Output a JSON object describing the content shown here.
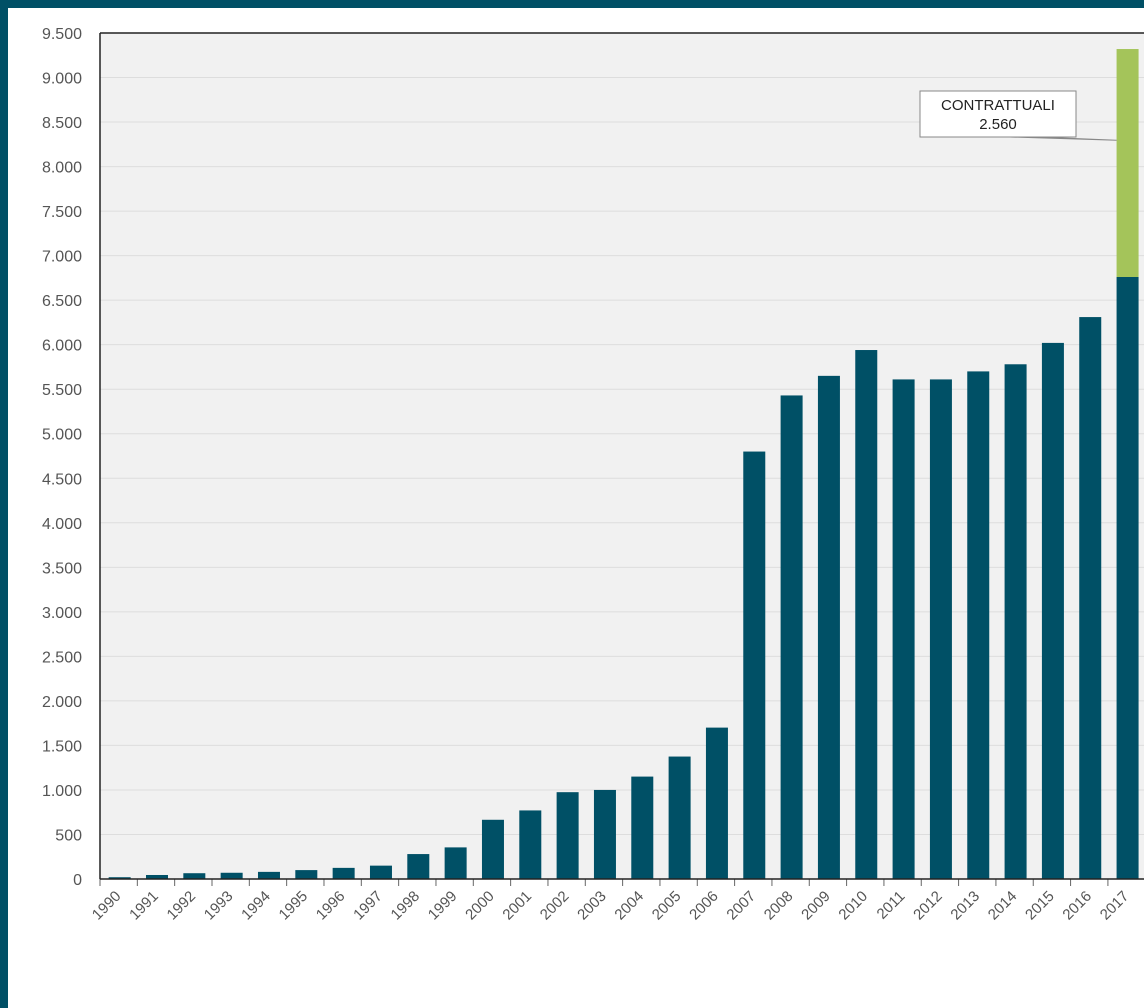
{
  "chart_data": {
    "type": "bar",
    "stacked": true,
    "title": "",
    "xlabel": "",
    "ylabel": "",
    "ylim": [
      0,
      9500
    ],
    "ytick_step": 500,
    "grid": true,
    "categories": [
      "1990",
      "1991",
      "1992",
      "1993",
      "1994",
      "1995",
      "1996",
      "1997",
      "1998",
      "1999",
      "2000",
      "2001",
      "2002",
      "2003",
      "2004",
      "2005",
      "2006",
      "2007",
      "2008",
      "2009",
      "2010",
      "2011",
      "2012",
      "2013",
      "2014",
      "2015",
      "2016",
      "2017"
    ],
    "series": [
      {
        "color": "#005066",
        "values": [
          20,
          45,
          65,
          70,
          80,
          100,
          125,
          150,
          280,
          355,
          665,
          770,
          975,
          1000,
          1150,
          1375,
          1700,
          4800,
          5430,
          5650,
          5940,
          5610,
          5610,
          5700,
          5780,
          6020,
          6310,
          6760
        ]
      },
      {
        "name": "CONTRATTUALI",
        "color": "#a4c45a",
        "values": [
          0,
          0,
          0,
          0,
          0,
          0,
          0,
          0,
          0,
          0,
          0,
          0,
          0,
          0,
          0,
          0,
          0,
          0,
          0,
          0,
          0,
          0,
          0,
          0,
          0,
          0,
          0,
          2560
        ]
      }
    ],
    "annotations": [
      {
        "series": "CONTRATTUALI",
        "category": "2017",
        "label": "CONTRATTUALI",
        "value_text": "2.560"
      }
    ],
    "background": "#f1f1f1",
    "grid_color": "#dddddd"
  }
}
